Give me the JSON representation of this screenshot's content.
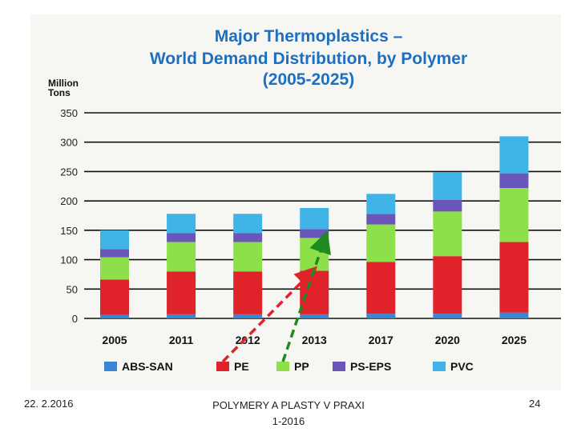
{
  "chart_data": {
    "type": "bar",
    "stacked": true,
    "title": "Major Thermoplastics – World Demand Distribution, by Polymer (2005-2025)",
    "title_lines": [
      "Major Thermoplastics –",
      "World Demand Distribution, by Polymer",
      "(2005-2025)"
    ],
    "ylabel_lines": [
      "Million",
      "Tons"
    ],
    "ylim": [
      0,
      350
    ],
    "yticks": [
      0,
      50,
      100,
      150,
      200,
      250,
      300,
      350
    ],
    "categories": [
      "2005",
      "2011",
      "2012",
      "2013",
      "2017",
      "2020",
      "2025"
    ],
    "series": [
      {
        "name": "ABS-SAN",
        "color": "#3a86d6",
        "values": [
          6,
          7,
          7,
          7,
          8,
          8,
          10
        ]
      },
      {
        "name": "PE",
        "color": "#e0232b",
        "values": [
          60,
          73,
          73,
          74,
          88,
          98,
          120
        ]
      },
      {
        "name": "PP",
        "color": "#8ee04a",
        "values": [
          38,
          50,
          50,
          56,
          64,
          76,
          92
        ]
      },
      {
        "name": "PS-EPS",
        "color": "#6a55b8",
        "values": [
          14,
          15,
          15,
          15,
          18,
          20,
          25
        ]
      },
      {
        "name": "PVC",
        "color": "#40b4e6",
        "values": [
          32,
          33,
          33,
          36,
          34,
          47,
          63
        ]
      }
    ],
    "grid": true,
    "legend_position": "bottom",
    "annotations": [
      {
        "type": "dashed-arrow",
        "color": "#e0232b",
        "from": "legend:PE",
        "to": "2013:PE"
      },
      {
        "type": "dashed-arrow",
        "color": "#1f8a1f",
        "from": "legend:PP",
        "to": "2013:PP"
      }
    ]
  },
  "footer": {
    "date": "22. 2.2016",
    "center_line1": "POLYMERY A PLASTY V PRAXI",
    "center_line2": "1-2016",
    "page": "24"
  }
}
